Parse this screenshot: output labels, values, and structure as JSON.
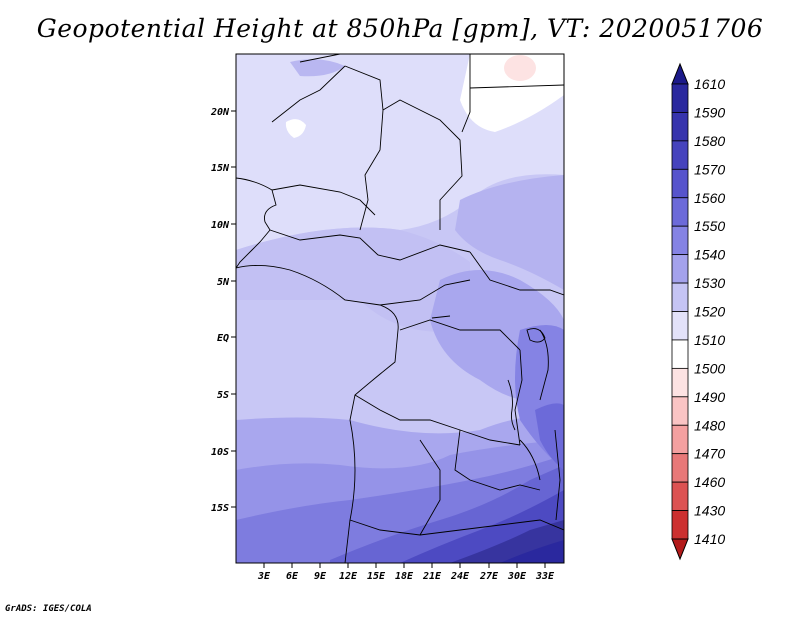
{
  "title": "Geopotential Height at 850hPa [gpm], VT: 2020051706",
  "footer": "GrADS: IGES/COLA",
  "map": {
    "y_ticks": [
      "20N",
      "15N",
      "10N",
      "5N",
      "EQ",
      "5S",
      "10S",
      "15S"
    ],
    "x_ticks": [
      "3E",
      "6E",
      "9E",
      "12E",
      "15E",
      "18E",
      "21E",
      "24E",
      "27E",
      "30E",
      "33E"
    ],
    "lon_range": [
      0,
      35
    ],
    "lat_range": [
      -20,
      25
    ]
  },
  "colorbar": {
    "labels": [
      "1610",
      "1590",
      "1580",
      "1570",
      "1560",
      "1550",
      "1540",
      "1530",
      "1520",
      "1510",
      "1500",
      "1490",
      "1480",
      "1470",
      "1460",
      "1430",
      "1410"
    ],
    "colors": [
      "#1c1a8a",
      "#2a289e",
      "#3734ad",
      "#4643bd",
      "#5754cc",
      "#6c6ad9",
      "#8583e4",
      "#a4a2ec",
      "#c5c4f4",
      "#e3e2f9",
      "#ffffff",
      "#fde3e3",
      "#fac4c4",
      "#f4a0a0",
      "#e87878",
      "#dc5252",
      "#cc3030",
      "#b21a1a"
    ]
  }
}
